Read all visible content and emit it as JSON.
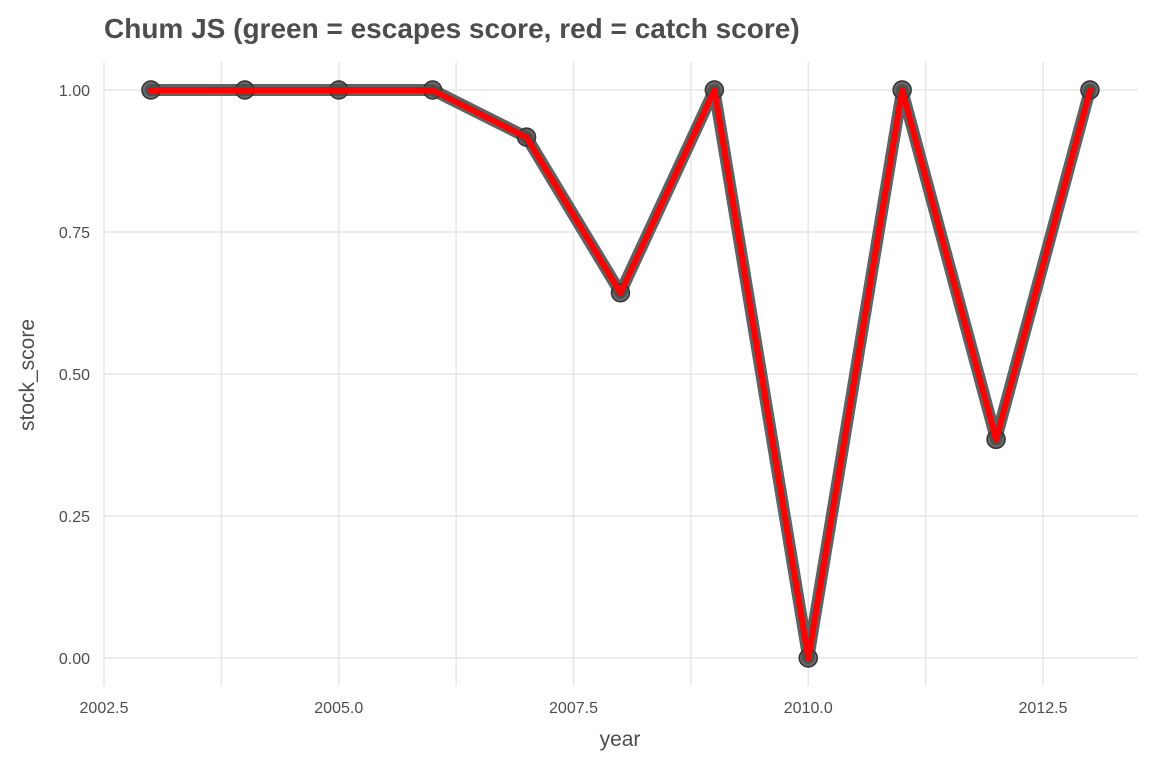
{
  "chart_data": {
    "type": "line",
    "title": "Chum JS (green = escapes score, red = catch score)",
    "xlabel": "year",
    "ylabel": "stock_score",
    "xlim": [
      2002.5,
      2013.5
    ],
    "ylim": [
      0,
      1.0
    ],
    "x_ticks": [
      2002.5,
      2005.0,
      2007.5,
      2010.0,
      2012.5
    ],
    "x_tick_labels": [
      "2002.5",
      "2005.0",
      "2007.5",
      "2010.0",
      "2012.5"
    ],
    "y_ticks": [
      0,
      0.25,
      0.5,
      0.75,
      1.0
    ],
    "y_tick_labels": [
      "0.00",
      "0.25",
      "0.50",
      "0.75",
      "1.00"
    ],
    "grid": true,
    "x": [
      2003,
      2004,
      2005,
      2006,
      2007,
      2008,
      2009,
      2010,
      2011,
      2012,
      2013
    ],
    "series": [
      {
        "style": "points-and-line",
        "color": "#595959",
        "values": [
          1.0,
          1.0,
          1.0,
          1.0,
          0.917,
          0.643,
          1.0,
          0.0,
          1.0,
          0.385,
          1.0
        ]
      },
      {
        "style": "line",
        "color": "#ff0000",
        "values": [
          1.0,
          1.0,
          1.0,
          1.0,
          0.917,
          0.643,
          1.0,
          0.0,
          1.0,
          0.385,
          1.0
        ]
      }
    ]
  }
}
